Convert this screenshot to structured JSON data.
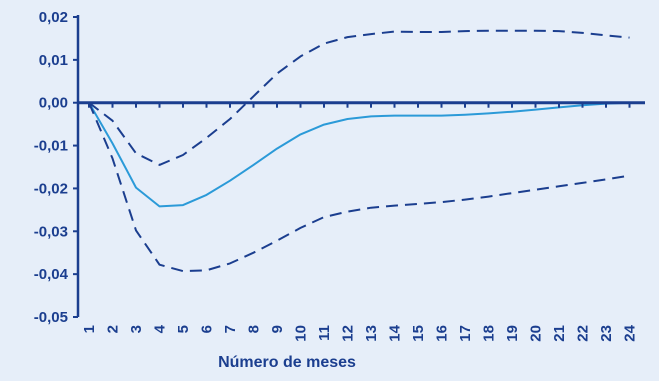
{
  "chart_data": {
    "type": "line",
    "title": "",
    "xlabel": "Número de meses",
    "ylabel": "",
    "x": [
      1,
      2,
      3,
      4,
      5,
      6,
      7,
      8,
      9,
      10,
      11,
      12,
      13,
      14,
      15,
      16,
      17,
      18,
      19,
      20,
      21,
      22,
      23,
      24
    ],
    "x_tick_labels": [
      "1",
      "2",
      "3",
      "4",
      "5",
      "6",
      "7",
      "8",
      "9",
      "10",
      "11",
      "12",
      "13",
      "14",
      "15",
      "16",
      "17",
      "18",
      "19",
      "20",
      "21",
      "22",
      "23",
      "24"
    ],
    "y_tick_values": [
      0.02,
      0.01,
      0.0,
      -0.01,
      -0.02,
      -0.03,
      -0.04,
      -0.05
    ],
    "y_tick_labels": [
      "0,02",
      "0,01",
      "0,00",
      "-0,01",
      "-0,02",
      "-0,03",
      "-0,04",
      "-0,05"
    ],
    "ylim": [
      -0.05,
      0.02
    ],
    "grid": false,
    "legend": "none",
    "series": [
      {
        "style": "solid",
        "color": "#2b9ad8",
        "values": [
          0.0,
          -0.0095,
          -0.0198,
          -0.0242,
          -0.0239,
          -0.0215,
          -0.0182,
          -0.0145,
          -0.0107,
          -0.0074,
          -0.0051,
          -0.0038,
          -0.0032,
          -0.003,
          -0.003,
          -0.003,
          -0.0028,
          -0.0025,
          -0.0021,
          -0.0016,
          -0.0011,
          -0.0006,
          -0.0002,
          0.0
        ]
      },
      {
        "style": "dashed",
        "color": "#1b3e8f",
        "values": [
          0.0,
          -0.0042,
          -0.0118,
          -0.0145,
          -0.0122,
          -0.0082,
          -0.0038,
          0.0015,
          0.0068,
          0.0108,
          0.0138,
          0.0153,
          0.016,
          0.0166,
          0.0165,
          0.0165,
          0.0167,
          0.0168,
          0.0168,
          0.0168,
          0.0167,
          0.0163,
          0.0157,
          0.0152
        ]
      },
      {
        "style": "dashed",
        "color": "#1b3e8f",
        "values": [
          0.0,
          -0.013,
          -0.0298,
          -0.0378,
          -0.0393,
          -0.0391,
          -0.0375,
          -0.035,
          -0.0322,
          -0.0292,
          -0.0267,
          -0.0254,
          -0.0245,
          -0.024,
          -0.0236,
          -0.0232,
          -0.0226,
          -0.0219,
          -0.0211,
          -0.0203,
          -0.0195,
          -0.0187,
          -0.0179,
          -0.017
        ]
      }
    ]
  },
  "colors": {
    "background": "#e6eef9",
    "axis": "#1b3e8f",
    "text": "#1b3e8f"
  }
}
